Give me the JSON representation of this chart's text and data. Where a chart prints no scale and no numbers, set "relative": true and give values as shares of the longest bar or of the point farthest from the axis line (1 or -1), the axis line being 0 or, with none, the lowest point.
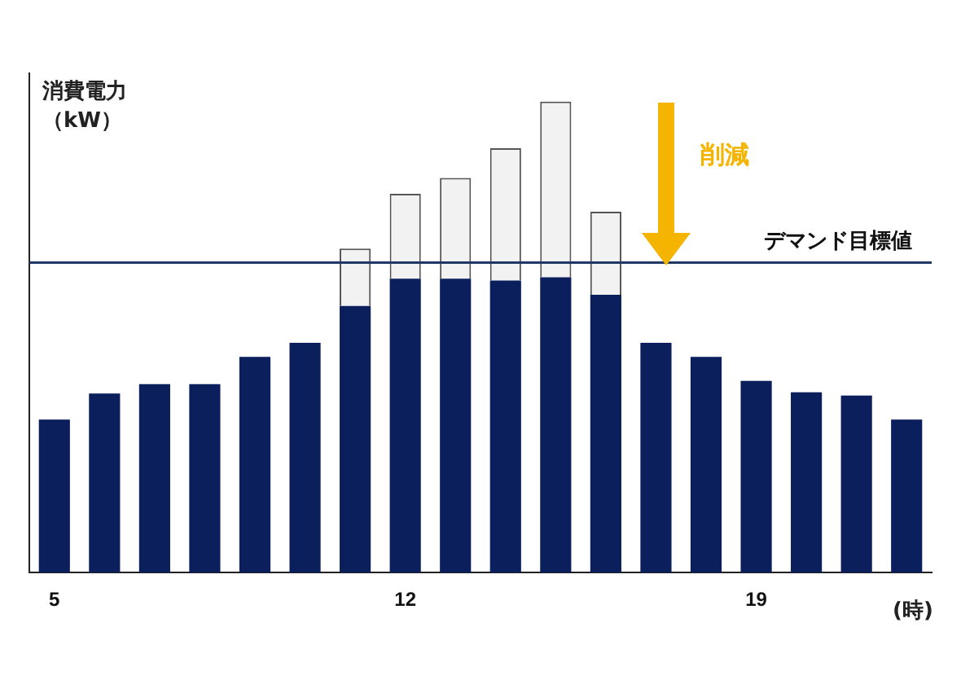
{
  "chart_data": {
    "type": "bar",
    "stacked": true,
    "relative": true,
    "ylabel": "消費電力（kW）",
    "xlabel": "(時)",
    "categories": [
      "5",
      null,
      null,
      null,
      null,
      null,
      null,
      "12",
      null,
      null,
      null,
      null,
      null,
      null,
      "19",
      null,
      null,
      null
    ],
    "series": [
      {
        "color": "#0b1f5c",
        "values": [
          0.325,
          0.38,
          0.4,
          0.4,
          0.458,
          0.488,
          0.566,
          0.624,
          0.624,
          0.62,
          0.627,
          0.59,
          0.488,
          0.458,
          0.407,
          0.383,
          0.376,
          0.325
        ]
      },
      {
        "color": "#f2f2f2",
        "values": [
          null,
          null,
          null,
          null,
          null,
          null,
          0.122,
          0.18,
          0.214,
          0.281,
          0.373,
          0.176,
          null,
          null,
          null,
          null,
          null,
          null
        ]
      }
    ],
    "ref_lines": [
      {
        "axis": "y",
        "value": 0.658,
        "label": "デマンド目標値",
        "color": "#1f3864"
      }
    ],
    "annotations": [
      "削減"
    ],
    "legend": false,
    "grid": false
  }
}
